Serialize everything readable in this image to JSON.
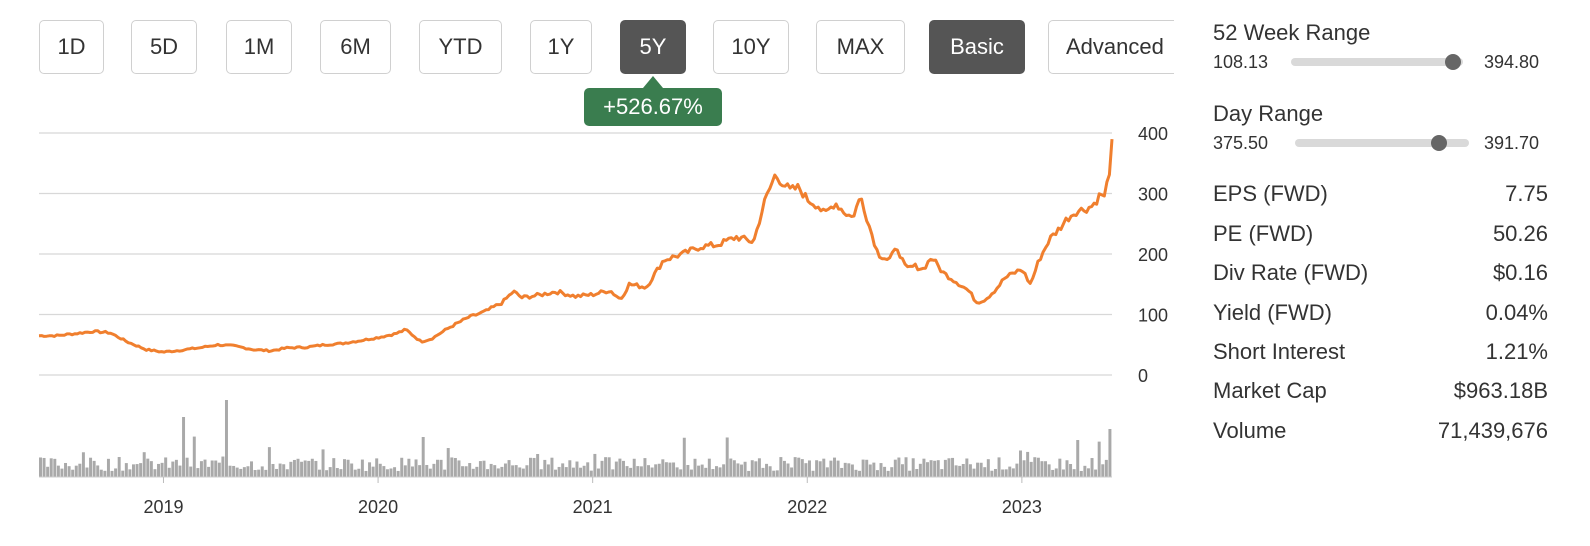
{
  "toolbar": {
    "buttons": [
      {
        "label": "1D"
      },
      {
        "label": "5D"
      },
      {
        "label": "1M"
      },
      {
        "label": "6M"
      },
      {
        "label": "YTD"
      },
      {
        "label": "1Y"
      },
      {
        "label": "5Y"
      },
      {
        "label": "10Y"
      },
      {
        "label": "MAX"
      }
    ],
    "selected_range": "5Y",
    "mode_basic": "Basic",
    "mode_advanced": "Advanced",
    "selected_mode": "Basic"
  },
  "change_badge": "+526.67%",
  "colors": {
    "line": "#f07f2e",
    "volume": "#a9a9a9",
    "badge": "#3a7d4f",
    "active_button": "#555555"
  },
  "stats": {
    "week52": {
      "title": "52 Week Range",
      "low": "108.13",
      "high": "394.80",
      "position": 0.94
    },
    "day": {
      "title": "Day Range",
      "low": "375.50",
      "high": "391.70",
      "position": 0.83
    },
    "rows": [
      {
        "label": "EPS (FWD)",
        "value": "7.75"
      },
      {
        "label": "PE (FWD)",
        "value": "50.26"
      },
      {
        "label": "Div Rate (FWD)",
        "value": "$0.16"
      },
      {
        "label": "Yield (FWD)",
        "value": "0.04%"
      },
      {
        "label": "Short Interest",
        "value": "1.21%"
      },
      {
        "label": "Market Cap",
        "value": "$963.18B"
      },
      {
        "label": "Volume",
        "value": "71,439,676"
      }
    ]
  },
  "chart_data": {
    "type": "line",
    "y_ticks": [
      "400",
      "300",
      "200",
      "100",
      "0"
    ],
    "x_ticks": [
      "2019",
      "2020",
      "2021",
      "2022",
      "2023"
    ],
    "ylim": [
      0,
      400
    ],
    "xlim": [
      2018.42,
      2023.42
    ],
    "grid": true,
    "series": [
      {
        "x": [
          2018.42,
          2018.5,
          2018.58,
          2018.67,
          2018.75,
          2018.83,
          2018.92,
          2019.0,
          2019.08,
          2019.17,
          2019.25,
          2019.33,
          2019.42,
          2019.5,
          2019.58,
          2019.67,
          2019.75,
          2019.83,
          2019.92,
          2020.0,
          2020.08,
          2020.13,
          2020.2,
          2020.25,
          2020.33,
          2020.42,
          2020.5,
          2020.58,
          2020.63,
          2020.67,
          2020.75,
          2020.83,
          2020.92,
          2021.0,
          2021.08,
          2021.13,
          2021.17,
          2021.25,
          2021.33,
          2021.42,
          2021.5,
          2021.58,
          2021.67,
          2021.75,
          2021.8,
          2021.85,
          2021.88,
          2021.92,
          2021.96,
          2022.0,
          2022.05,
          2022.08,
          2022.13,
          2022.17,
          2022.21,
          2022.25,
          2022.29,
          2022.33,
          2022.38,
          2022.42,
          2022.46,
          2022.5,
          2022.54,
          2022.58,
          2022.63,
          2022.67,
          2022.71,
          2022.75,
          2022.79,
          2022.83,
          2022.88,
          2022.92,
          2022.96,
          2023.0,
          2023.04,
          2023.08,
          2023.13,
          2023.17,
          2023.21,
          2023.25,
          2023.3,
          2023.33,
          2023.37,
          2023.39,
          2023.4,
          2023.41,
          2023.42
        ],
        "y": [
          65,
          65,
          68,
          72,
          70,
          55,
          42,
          38,
          41,
          45,
          50,
          48,
          42,
          40,
          45,
          46,
          50,
          52,
          57,
          62,
          68,
          75,
          55,
          60,
          78,
          95,
          105,
          120,
          138,
          128,
          132,
          138,
          130,
          133,
          140,
          125,
          150,
          145,
          190,
          200,
          212,
          215,
          228,
          220,
          285,
          330,
          320,
          305,
          310,
          290,
          280,
          265,
          285,
          270,
          260,
          295,
          245,
          200,
          190,
          210,
          175,
          180,
          175,
          195,
          170,
          160,
          150,
          140,
          120,
          125,
          142,
          160,
          168,
          175,
          150,
          190,
          225,
          240,
          258,
          270,
          275,
          280,
          300,
          290,
          330,
          340,
          390
        ]
      }
    ]
  }
}
